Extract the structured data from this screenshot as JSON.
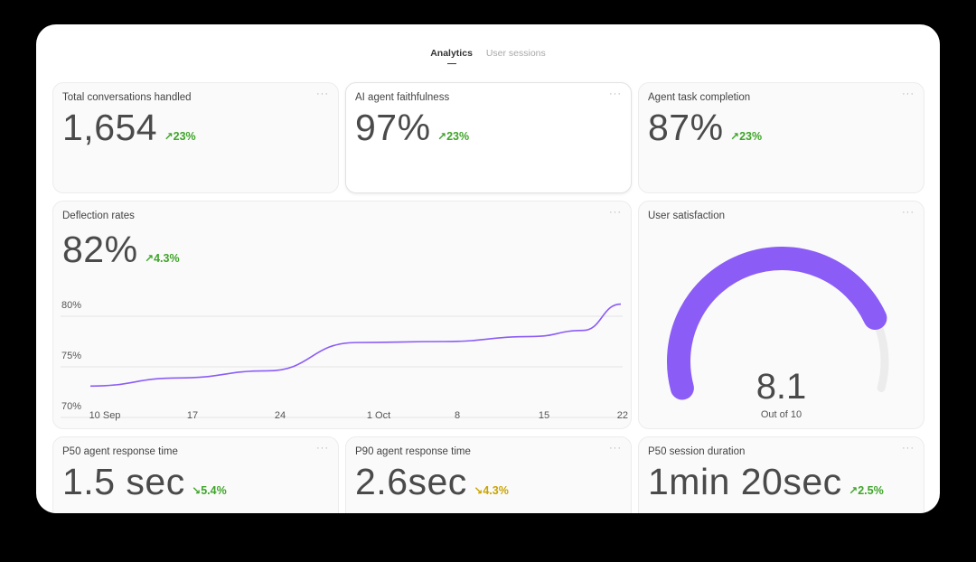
{
  "tabs": [
    {
      "label": "Analytics",
      "active": true
    },
    {
      "label": "User sessions",
      "active": false
    }
  ],
  "cards": {
    "total_conversations": {
      "title": "Total conversations handled",
      "value": "1,654",
      "delta": "23%",
      "direction": "up"
    },
    "faithfulness": {
      "title": "AI agent faithfulness",
      "value": "97%",
      "delta": "23%",
      "direction": "up"
    },
    "task_completion": {
      "title": "Agent task completion",
      "value": "87%",
      "delta": "23%",
      "direction": "up"
    },
    "deflection": {
      "title": "Deflection rates",
      "value": "82%",
      "delta": "4.3%",
      "direction": "up"
    },
    "satisfaction": {
      "title": "User satisfaction",
      "value": "8.1",
      "subtitle": "Out of 10",
      "score": 8.1,
      "max": 10
    },
    "p50_response": {
      "title": "P50 agent response time",
      "value": "1.5 sec",
      "delta": "5.4%",
      "direction": "down"
    },
    "p90_response": {
      "title": "P90 agent response time",
      "value": "2.6sec",
      "delta": "4.3%",
      "direction": "down"
    },
    "p50_session": {
      "title": "P50 session duration",
      "value": "1min 20sec",
      "delta": "2.5%",
      "direction": "up"
    }
  },
  "menu_glyph": "···",
  "colors": {
    "accent_purple": "#8b5cf6",
    "gauge_track": "#ececec",
    "positive": "#3fa52a",
    "warning": "#c9a400"
  },
  "chart_data": {
    "type": "line",
    "title": "Deflection rates",
    "x_tick_labels": [
      "10 Sep",
      "17",
      "24",
      "1 Oct",
      "8",
      "15",
      "22"
    ],
    "y_tick_labels": [
      "80%",
      "75%",
      "70%"
    ],
    "ylim": [
      70,
      80
    ],
    "x": [
      "10 Sep",
      "17 Sep",
      "24 Sep",
      "1 Oct",
      "8 Oct",
      "15 Oct",
      "19 Oct",
      "22 Oct"
    ],
    "values": [
      73.1,
      73.9,
      74.6,
      77.4,
      77.5,
      78.0,
      78.6,
      81.2
    ],
    "grid": true
  }
}
